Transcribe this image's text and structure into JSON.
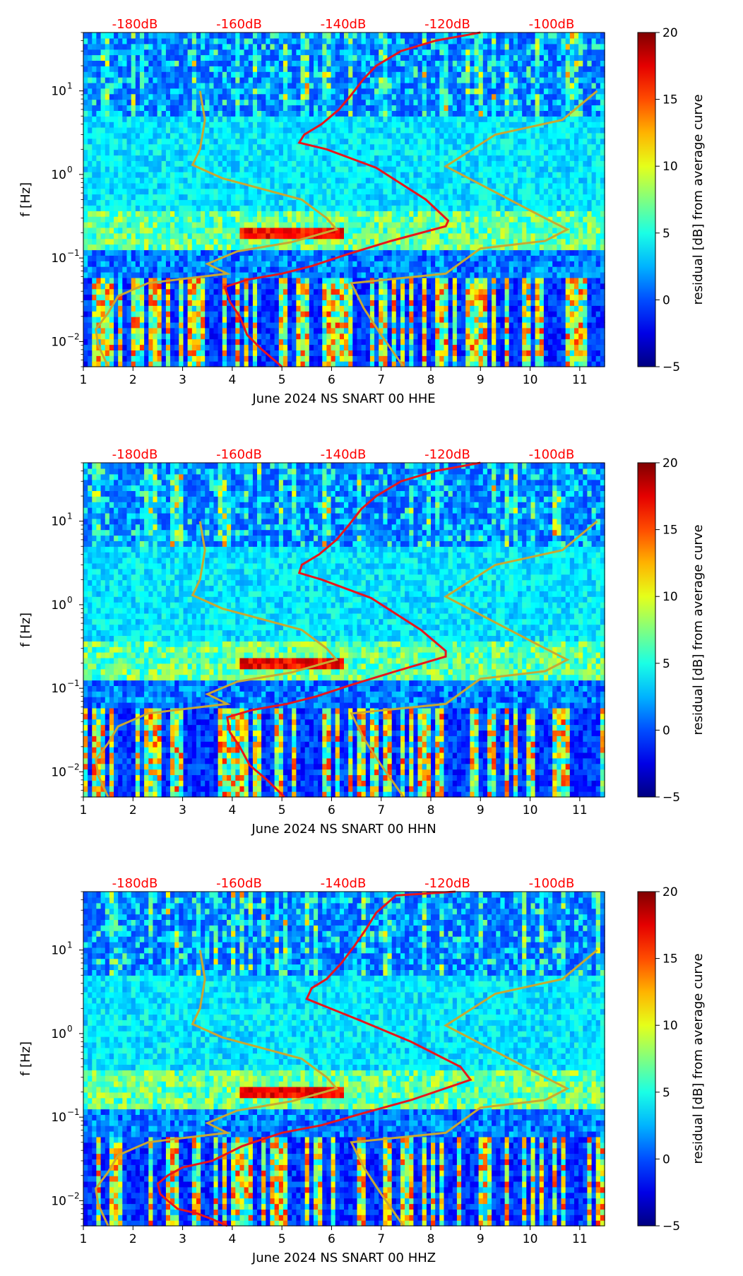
{
  "chart_data": [
    {
      "type": "heatmap",
      "xlabel": "June 2024 NS SNART 00 HHE",
      "ylabel": "f [Hz]",
      "xlim": [
        1,
        11.5
      ],
      "ylim": [
        0.005,
        50
      ],
      "yscale": "log",
      "xticks": [
        1,
        2,
        3,
        4,
        5,
        6,
        7,
        8,
        9,
        10,
        11
      ],
      "yticks": [
        {
          "value": 0.01,
          "base": "10",
          "exp": "−2"
        },
        {
          "value": 0.1,
          "base": "10",
          "exp": "−1"
        },
        {
          "value": 1,
          "base": "10",
          "exp": "0"
        },
        {
          "value": 10,
          "base": "10",
          "exp": "1"
        }
      ],
      "top_axis_labels": [
        "-180dB",
        "-160dB",
        "-140dB",
        "-120dB",
        "-100dB"
      ],
      "top_axis_color": "#ff0000",
      "colorbar": {
        "label": "residual [dB] from average curve",
        "min": -5,
        "max": 20,
        "ticks": [
          -5,
          0,
          5,
          10,
          15,
          20
        ],
        "colormap": "jet"
      },
      "average_curve": {
        "color": "#e8151b",
        "points": [
          [
            5.0,
            0.005
          ],
          [
            4.6,
            0.008
          ],
          [
            4.3,
            0.012
          ],
          [
            4.15,
            0.02
          ],
          [
            3.95,
            0.03
          ],
          [
            3.85,
            0.045
          ],
          [
            4.3,
            0.055
          ],
          [
            5.0,
            0.065
          ],
          [
            5.6,
            0.08
          ],
          [
            6.3,
            0.11
          ],
          [
            7.2,
            0.16
          ],
          [
            8.3,
            0.24
          ],
          [
            8.35,
            0.28
          ],
          [
            7.9,
            0.5
          ],
          [
            6.9,
            1.2
          ],
          [
            5.9,
            2.0
          ],
          [
            5.35,
            2.4
          ],
          [
            5.45,
            3.0
          ],
          [
            5.8,
            4.0
          ],
          [
            6.15,
            6.0
          ],
          [
            6.4,
            9.0
          ],
          [
            6.65,
            14.0
          ],
          [
            6.9,
            20.0
          ],
          [
            7.4,
            30.0
          ],
          [
            8.1,
            40.0
          ],
          [
            9.0,
            50.0
          ]
        ]
      },
      "model_curves": {
        "color": "#c8a832",
        "low_points": [
          [
            1.5,
            0.005
          ],
          [
            1.3,
            0.009
          ],
          [
            1.25,
            0.014
          ],
          [
            1.5,
            0.022
          ],
          [
            1.7,
            0.035
          ],
          [
            2.3,
            0.05
          ],
          [
            3.2,
            0.058
          ],
          [
            3.9,
            0.065
          ],
          [
            3.5,
            0.085
          ],
          [
            4.1,
            0.12
          ],
          [
            5.2,
            0.155
          ],
          [
            6.1,
            0.22
          ],
          [
            5.9,
            0.3
          ],
          [
            5.4,
            0.5
          ],
          [
            3.8,
            0.9
          ],
          [
            3.2,
            1.3
          ],
          [
            3.35,
            2.0
          ],
          [
            3.45,
            4.5
          ],
          [
            3.35,
            10.0
          ]
        ],
        "high_points": [
          [
            7.45,
            0.005
          ],
          [
            7.0,
            0.012
          ],
          [
            6.65,
            0.025
          ],
          [
            6.4,
            0.05
          ],
          [
            8.3,
            0.065
          ],
          [
            9.0,
            0.13
          ],
          [
            10.3,
            0.16
          ],
          [
            10.75,
            0.22
          ],
          [
            10.3,
            0.3
          ],
          [
            8.3,
            1.25
          ],
          [
            9.3,
            3.0
          ],
          [
            10.65,
            4.5
          ],
          [
            11.35,
            10.0
          ]
        ]
      }
    },
    {
      "type": "heatmap",
      "xlabel": "June 2024 NS SNART 00 HHN",
      "ylabel": "f [Hz]",
      "xlim": [
        1,
        11.5
      ],
      "ylim": [
        0.005,
        50
      ],
      "yscale": "log",
      "xticks": [
        1,
        2,
        3,
        4,
        5,
        6,
        7,
        8,
        9,
        10,
        11
      ],
      "yticks": [
        {
          "value": 0.01,
          "base": "10",
          "exp": "−2"
        },
        {
          "value": 0.1,
          "base": "10",
          "exp": "−1"
        },
        {
          "value": 1,
          "base": "10",
          "exp": "0"
        },
        {
          "value": 10,
          "base": "10",
          "exp": "1"
        }
      ],
      "top_axis_labels": [
        "-180dB",
        "-160dB",
        "-140dB",
        "-120dB",
        "-100dB"
      ],
      "top_axis_color": "#ff0000",
      "colorbar": {
        "label": "residual [dB] from average curve",
        "min": -5,
        "max": 20,
        "ticks": [
          -5,
          0,
          5,
          10,
          15,
          20
        ],
        "colormap": "jet"
      },
      "average_curve": {
        "color": "#e8151b",
        "points": [
          [
            5.05,
            0.005
          ],
          [
            4.7,
            0.008
          ],
          [
            4.35,
            0.012
          ],
          [
            4.15,
            0.02
          ],
          [
            3.95,
            0.03
          ],
          [
            3.9,
            0.045
          ],
          [
            4.4,
            0.055
          ],
          [
            5.1,
            0.065
          ],
          [
            5.7,
            0.08
          ],
          [
            6.4,
            0.11
          ],
          [
            7.3,
            0.16
          ],
          [
            8.3,
            0.24
          ],
          [
            8.3,
            0.28
          ],
          [
            7.8,
            0.5
          ],
          [
            6.8,
            1.2
          ],
          [
            5.8,
            2.0
          ],
          [
            5.35,
            2.4
          ],
          [
            5.4,
            3.0
          ],
          [
            5.75,
            4.0
          ],
          [
            6.1,
            6.0
          ],
          [
            6.35,
            9.0
          ],
          [
            6.6,
            14.0
          ],
          [
            6.9,
            20.0
          ],
          [
            7.4,
            30.0
          ],
          [
            8.1,
            40.0
          ],
          [
            9.0,
            50.0
          ]
        ]
      },
      "model_curves": {
        "color": "#c8a832",
        "low_points": [
          [
            1.5,
            0.005
          ],
          [
            1.3,
            0.009
          ],
          [
            1.25,
            0.014
          ],
          [
            1.5,
            0.022
          ],
          [
            1.7,
            0.035
          ],
          [
            2.3,
            0.05
          ],
          [
            3.2,
            0.058
          ],
          [
            3.9,
            0.065
          ],
          [
            3.5,
            0.085
          ],
          [
            4.1,
            0.12
          ],
          [
            5.2,
            0.155
          ],
          [
            6.1,
            0.22
          ],
          [
            5.9,
            0.3
          ],
          [
            5.4,
            0.5
          ],
          [
            3.8,
            0.9
          ],
          [
            3.2,
            1.3
          ],
          [
            3.35,
            2.0
          ],
          [
            3.45,
            4.5
          ],
          [
            3.35,
            10.0
          ]
        ],
        "high_points": [
          [
            7.45,
            0.005
          ],
          [
            7.0,
            0.012
          ],
          [
            6.65,
            0.025
          ],
          [
            6.4,
            0.05
          ],
          [
            8.3,
            0.065
          ],
          [
            9.0,
            0.13
          ],
          [
            10.3,
            0.16
          ],
          [
            10.75,
            0.22
          ],
          [
            10.3,
            0.3
          ],
          [
            8.3,
            1.25
          ],
          [
            9.3,
            3.0
          ],
          [
            10.65,
            4.5
          ],
          [
            11.35,
            10.0
          ]
        ]
      }
    },
    {
      "type": "heatmap",
      "xlabel": "June 2024 NS SNART 00 HHZ",
      "ylabel": "f [Hz]",
      "xlim": [
        1,
        11.5
      ],
      "ylim": [
        0.005,
        50
      ],
      "yscale": "log",
      "xticks": [
        1,
        2,
        3,
        4,
        5,
        6,
        7,
        8,
        9,
        10,
        11
      ],
      "yticks": [
        {
          "value": 0.01,
          "base": "10",
          "exp": "−2"
        },
        {
          "value": 0.1,
          "base": "10",
          "exp": "−1"
        },
        {
          "value": 1,
          "base": "10",
          "exp": "0"
        },
        {
          "value": 10,
          "base": "10",
          "exp": "1"
        }
      ],
      "top_axis_labels": [
        "-180dB",
        "-160dB",
        "-140dB",
        "-120dB",
        "-100dB"
      ],
      "top_axis_color": "#ff0000",
      "colorbar": {
        "label": "residual [dB] from average curve",
        "min": -5,
        "max": 20,
        "ticks": [
          -5,
          0,
          5,
          10,
          15,
          20
        ],
        "colormap": "jet"
      },
      "average_curve": {
        "color": "#e8151b",
        "points": [
          [
            3.9,
            0.005
          ],
          [
            3.6,
            0.006
          ],
          [
            3.3,
            0.007
          ],
          [
            2.9,
            0.008
          ],
          [
            2.7,
            0.01
          ],
          [
            2.55,
            0.012
          ],
          [
            2.5,
            0.016
          ],
          [
            2.7,
            0.02
          ],
          [
            3.0,
            0.025
          ],
          [
            3.6,
            0.03
          ],
          [
            4.2,
            0.045
          ],
          [
            5.0,
            0.065
          ],
          [
            5.8,
            0.08
          ],
          [
            6.6,
            0.11
          ],
          [
            7.6,
            0.16
          ],
          [
            8.8,
            0.28
          ],
          [
            8.6,
            0.4
          ],
          [
            7.6,
            0.8
          ],
          [
            6.5,
            1.5
          ],
          [
            5.8,
            2.2
          ],
          [
            5.5,
            2.6
          ],
          [
            5.6,
            3.5
          ],
          [
            5.9,
            4.5
          ],
          [
            6.2,
            7.0
          ],
          [
            6.45,
            11.0
          ],
          [
            6.7,
            18.0
          ],
          [
            6.9,
            28.0
          ],
          [
            7.3,
            45.0
          ],
          [
            8.5,
            50.0
          ]
        ]
      },
      "model_curves": {
        "color": "#c8a832",
        "low_points": [
          [
            1.5,
            0.005
          ],
          [
            1.3,
            0.009
          ],
          [
            1.25,
            0.014
          ],
          [
            1.5,
            0.022
          ],
          [
            1.7,
            0.035
          ],
          [
            2.3,
            0.05
          ],
          [
            3.2,
            0.058
          ],
          [
            3.9,
            0.065
          ],
          [
            3.5,
            0.085
          ],
          [
            4.1,
            0.12
          ],
          [
            5.2,
            0.155
          ],
          [
            6.1,
            0.22
          ],
          [
            5.9,
            0.3
          ],
          [
            5.4,
            0.5
          ],
          [
            3.8,
            0.9
          ],
          [
            3.2,
            1.3
          ],
          [
            3.35,
            2.0
          ],
          [
            3.45,
            4.5
          ],
          [
            3.35,
            10.0
          ]
        ],
        "high_points": [
          [
            7.45,
            0.005
          ],
          [
            7.0,
            0.012
          ],
          [
            6.65,
            0.025
          ],
          [
            6.4,
            0.05
          ],
          [
            8.3,
            0.065
          ],
          [
            9.0,
            0.13
          ],
          [
            10.3,
            0.16
          ],
          [
            10.75,
            0.22
          ],
          [
            10.3,
            0.3
          ],
          [
            8.3,
            1.25
          ],
          [
            9.3,
            3.0
          ],
          [
            10.65,
            4.5
          ],
          [
            11.35,
            10.0
          ]
        ]
      }
    }
  ]
}
